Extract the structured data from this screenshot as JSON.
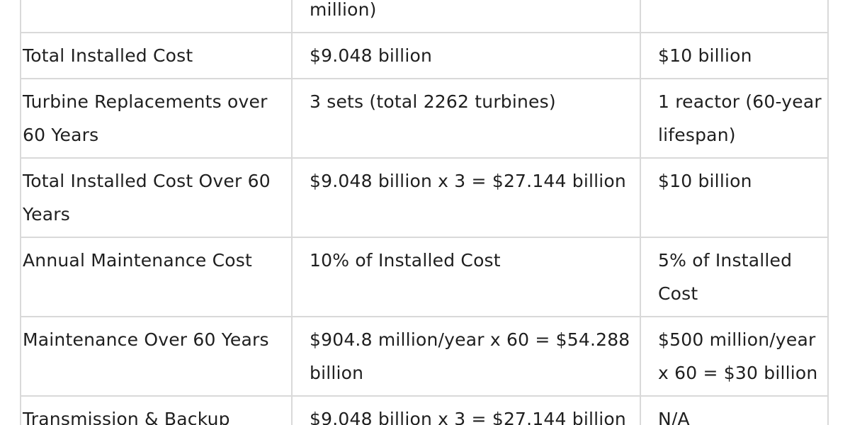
{
  "table": {
    "rows": [
      {
        "c1": "",
        "c2": "million)",
        "c3": ""
      },
      {
        "c1": "Total Installed Cost",
        "c2": "$9.048 billion",
        "c3": "$10 billion"
      },
      {
        "c1": "Turbine Replacements over 60 Years",
        "c2": "3 sets (total 2262 turbines)",
        "c3": "1 reactor (60-year lifespan)"
      },
      {
        "c1": "Total Installed Cost Over 60 Years",
        "c2": "$9.048 billion x 3 = $27.144 billion",
        "c3": "$10 billion"
      },
      {
        "c1": "Annual Maintenance Cost",
        "c2": "10% of Installed Cost",
        "c3": "5% of Installed Cost"
      },
      {
        "c1": "Maintenance Over 60 Years",
        "c2": "$904.8 million/year x 60 = $54.288 billion",
        "c3": "$500 million/year x 60 = $30 billion"
      },
      {
        "c1": "Transmission & Backup",
        "c2": "$9.048 billion x 3 = $27.144 billion",
        "c3": "N/A"
      }
    ]
  }
}
